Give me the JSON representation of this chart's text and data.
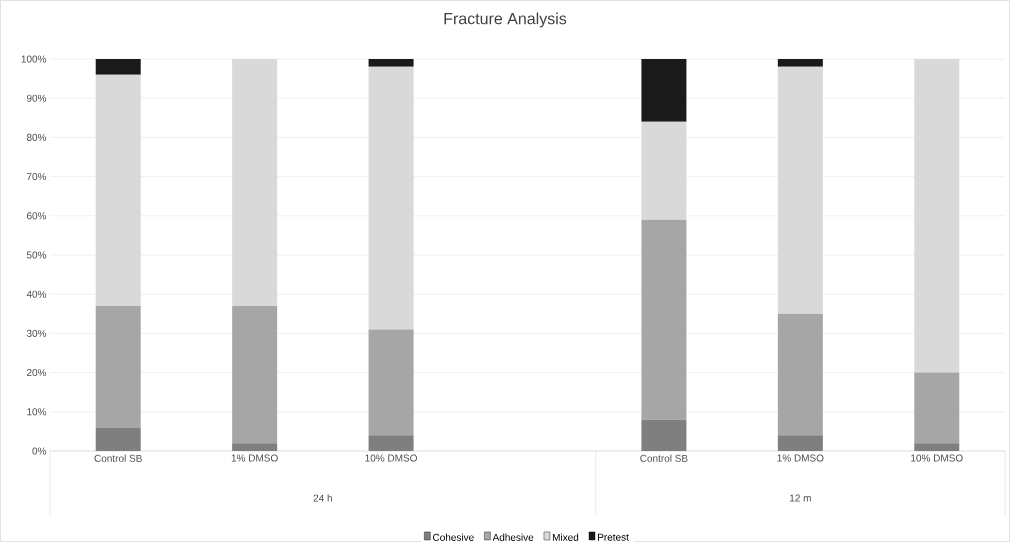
{
  "chart_data": {
    "type": "bar",
    "stacked": true,
    "title": "Fracture Analysis",
    "categories": [
      "Control SB",
      "1% DMSO",
      "10% DMSO",
      null,
      "Control SB",
      "1% DMSO",
      "10% DMSO"
    ],
    "series": [
      {
        "name": "Cohesive",
        "color": "#7f7f7f",
        "values": [
          6,
          2,
          4,
          null,
          8,
          4,
          2
        ]
      },
      {
        "name": "Adhesive",
        "color": "#a6a6a6",
        "values": [
          31,
          35,
          27,
          null,
          51,
          31,
          18
        ]
      },
      {
        "name": "Mixed",
        "color": "#d9d9d9",
        "values": [
          59,
          63,
          67,
          null,
          25,
          63,
          80
        ]
      },
      {
        "name": "Pretest",
        "color": "#1a1a1a",
        "values": [
          4,
          0,
          2,
          null,
          16,
          2,
          0
        ]
      }
    ],
    "ylim": [
      0,
      100
    ],
    "yticks": [
      {
        "value": 0,
        "label": "0%"
      },
      {
        "value": 10,
        "label": "10%"
      },
      {
        "value": 20,
        "label": "20%"
      },
      {
        "value": 30,
        "label": "30%"
      },
      {
        "value": 40,
        "label": "40%"
      },
      {
        "value": 50,
        "label": "50%"
      },
      {
        "value": 60,
        "label": "60%"
      },
      {
        "value": 70,
        "label": "70%"
      },
      {
        "value": 80,
        "label": "80%"
      },
      {
        "value": 90,
        "label": "90%"
      },
      {
        "value": 100,
        "label": "100%"
      }
    ],
    "grid": "y",
    "legend": "bottom",
    "annotations": [
      "24 h",
      "12 m"
    ]
  }
}
